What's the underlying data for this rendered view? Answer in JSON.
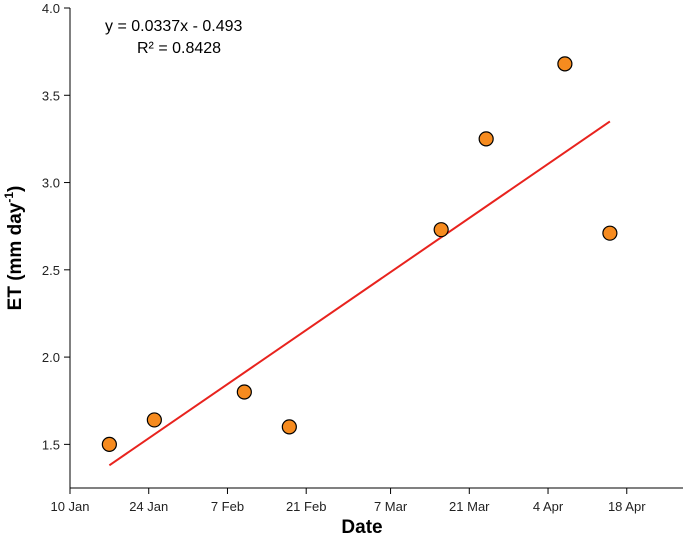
{
  "chart_data": {
    "type": "scatter",
    "xlabel": "Date",
    "ylabel": "ET (mm day",
    "ylabel_superscript": "-1",
    "ylabel_suffix": ")",
    "x_ticks": [
      {
        "date": "2024-01-10",
        "label": "10 Jan"
      },
      {
        "date": "2024-01-24",
        "label": "24 Jan"
      },
      {
        "date": "2024-02-07",
        "label": "7 Feb"
      },
      {
        "date": "2024-02-21",
        "label": "21 Feb"
      },
      {
        "date": "2024-03-07",
        "label": "7 Mar"
      },
      {
        "date": "2024-03-21",
        "label": "21 Mar"
      },
      {
        "date": "2024-04-04",
        "label": "4 Apr"
      },
      {
        "date": "2024-04-18",
        "label": "18 Apr"
      }
    ],
    "xlim": [
      "2024-01-10",
      "2024-04-28"
    ],
    "ylim": [
      1.25,
      4.0
    ],
    "y_ticks": [
      1.5,
      2.0,
      2.5,
      3.0,
      3.5,
      4.0
    ],
    "y_tick_labels": [
      "1.5",
      "2.0",
      "2.5",
      "3.0",
      "3.5",
      "4.0"
    ],
    "grid": false,
    "points": [
      {
        "x": "2024-01-17",
        "y": 1.5
      },
      {
        "x": "2024-01-25",
        "y": 1.64
      },
      {
        "x": "2024-02-10",
        "y": 1.8
      },
      {
        "x": "2024-02-18",
        "y": 1.6
      },
      {
        "x": "2024-03-16",
        "y": 2.73
      },
      {
        "x": "2024-03-24",
        "y": 3.25
      },
      {
        "x": "2024-04-07",
        "y": 3.68
      },
      {
        "x": "2024-04-15",
        "y": 2.71
      }
    ],
    "fit_line": {
      "x_start": "2024-01-17",
      "x_end": "2024-04-15",
      "y_start": 1.38,
      "y_end": 3.35,
      "color": "#e8231e"
    },
    "equation": "y = 0.0337x - 0.493",
    "r_squared": "R² = 0.8428",
    "point_color": "#f68b1f",
    "point_stroke": "#000000"
  }
}
